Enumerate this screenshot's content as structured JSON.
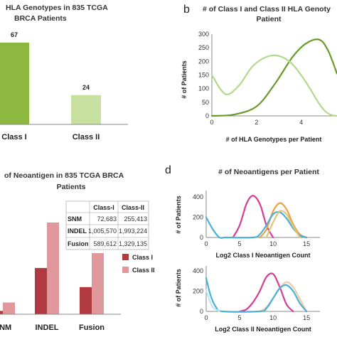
{
  "panels": {
    "a": {
      "title_lines": [
        "HLA Genotypes in 835 TCGA",
        "BRCA Patients"
      ],
      "chart_data": {
        "type": "bar",
        "categories": [
          "Class I",
          "Class II"
        ],
        "values": [
          67,
          24
        ],
        "data_labels": [
          "67",
          "24"
        ],
        "colors": [
          "#8db83f",
          "#c8e0a0"
        ],
        "ylim": [
          0,
          80
        ]
      }
    },
    "b": {
      "label": "b",
      "title_lines": [
        "# of Class I and Class II HLA Genoty",
        "Patient"
      ],
      "ylabel": "# of Patients",
      "xlabel": "# of HLA Genotypes per Patient",
      "yticks": [
        "0",
        "50",
        "100",
        "150",
        "200",
        "250",
        "300"
      ],
      "xticks": [
        "0",
        "2",
        "4"
      ],
      "chart_data": {
        "type": "line",
        "xlim": [
          0,
          5.6
        ],
        "ylim": [
          0,
          300
        ],
        "series": [
          {
            "color": "#6a9a2a",
            "x": [
              0,
              1,
              2,
              2.8,
              3.6,
              4.2,
              4.8,
              5.2,
              5.6
            ],
            "y": [
              0,
              5,
              35,
              115,
              215,
              265,
              280,
              240,
              155
            ]
          },
          {
            "color": "#b4d88c",
            "x": [
              0,
              0.6,
              1.2,
              1.8,
              2.4,
              3,
              3.6,
              4.2,
              4.8,
              5.1,
              5.4,
              5.6
            ],
            "y": [
              150,
              80,
              110,
              180,
              215,
              220,
              190,
              125,
              45,
              15,
              2,
              0
            ]
          }
        ]
      }
    },
    "c": {
      "title_lines": [
        "of Neoantigen in 835 TCGA BRCA",
        "Patients"
      ],
      "legend": [
        "Class I",
        "Class II"
      ],
      "table": {
        "header": [
          "",
          "Class-I",
          "Class-II"
        ],
        "rows": [
          [
            "SNM",
            "72,683",
            "255,413"
          ],
          [
            "INDEL",
            "1,005,570",
            "1,993,224"
          ],
          [
            "Fusion",
            "589,612",
            "1,329,135"
          ]
        ]
      },
      "chart_data": {
        "type": "bar",
        "categories": [
          "SNM",
          "INDEL",
          "Fusion"
        ],
        "series": [
          {
            "name": "Class I",
            "color": "#b03a3f",
            "values": [
              72683,
              1005570,
              589612
            ]
          },
          {
            "name": "Class II",
            "color": "#e0989c",
            "values": [
              255413,
              1993224,
              1329135
            ]
          }
        ]
      }
    },
    "d": {
      "label": "d",
      "title": "# of Neoantigens per Patient",
      "top": {
        "ylabel": "# of Patients",
        "xlabel": "Log2 Class I Neoantigen Count",
        "yticks": [
          "0",
          "200",
          "400"
        ],
        "xticks": [
          "0",
          "5",
          "10",
          "15"
        ],
        "chart_data": {
          "type": "line",
          "xlim": [
            0,
            17
          ],
          "ylim": [
            0,
            450
          ],
          "series": [
            {
              "color": "#d63b97",
              "x": [
                4,
                5,
                6,
                6.8,
                7.5,
                8.2,
                9,
                10
              ],
              "y": [
                0,
                120,
                330,
                410,
                390,
                300,
                120,
                0
              ]
            },
            {
              "color": "#f0a040",
              "x": [
                8,
                9,
                10,
                11,
                12,
                13,
                14,
                15
              ],
              "y": [
                0,
                80,
                260,
                340,
                280,
                130,
                30,
                0
              ]
            },
            {
              "color": "#49b0d9",
              "x": [
                0,
                1,
                2,
                3,
                7,
                8,
                9,
                10,
                11,
                12,
                13,
                14,
                15
              ],
              "y": [
                200,
                80,
                0,
                0,
                0,
                30,
                120,
                230,
                250,
                190,
                90,
                20,
                0
              ]
            },
            {
              "color": "#e3c37a",
              "x": [
                9,
                10,
                11,
                12,
                13,
                14
              ],
              "y": [
                0,
                150,
                260,
                230,
                110,
                0
              ]
            }
          ]
        }
      },
      "bottom": {
        "ylabel": "# of Patients",
        "xlabel": "Log2 Class II Neoantigen Count",
        "yticks": [
          "0",
          "200",
          "400"
        ],
        "xticks": [
          "0",
          "5",
          "10",
          "15"
        ],
        "chart_data": {
          "type": "line",
          "xlim": [
            0,
            17
          ],
          "ylim": [
            0,
            450
          ],
          "series": [
            {
              "color": "#d63b97",
              "x": [
                5,
                6,
                7,
                8,
                9,
                10,
                11,
                12,
                13
              ],
              "y": [
                0,
                20,
                90,
                200,
                340,
                370,
                240,
                70,
                0
              ]
            },
            {
              "color": "#f5c9a0",
              "x": [
                8,
                9,
                10,
                11,
                12,
                13,
                14,
                15
              ],
              "y": [
                0,
                40,
                130,
                230,
                290,
                240,
                120,
                0
              ]
            },
            {
              "color": "#49b0d9",
              "x": [
                0,
                0.7,
                1.5,
                2.5,
                8,
                9,
                10,
                11,
                12,
                13,
                14,
                15
              ],
              "y": [
                330,
                150,
                40,
                0,
                0,
                30,
                130,
                230,
                260,
                200,
                80,
                0
              ]
            },
            {
              "color": "#bfe6f5",
              "x": [
                0,
                0.5,
                1,
                2
              ],
              "y": [
                210,
                110,
                40,
                0
              ]
            }
          ]
        }
      }
    }
  }
}
